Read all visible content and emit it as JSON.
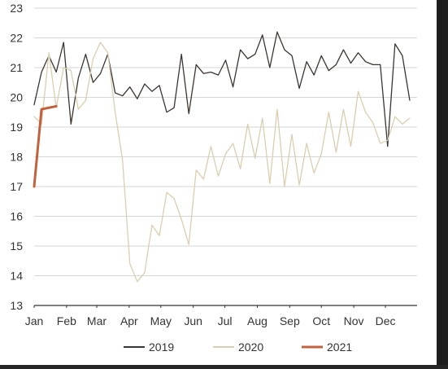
{
  "chart_data": {
    "type": "line",
    "title": "",
    "xlabel": "",
    "ylabel": "",
    "ylim": [
      13,
      23
    ],
    "yticks": [
      13,
      14,
      15,
      16,
      17,
      18,
      19,
      20,
      21,
      22,
      23
    ],
    "xlim": [
      0,
      52
    ],
    "month_ticks": [
      {
        "label": "Jan",
        "week": 0
      },
      {
        "label": "Feb",
        "week": 4.4
      },
      {
        "label": "Mar",
        "week": 8.5
      },
      {
        "label": "Apr",
        "week": 12.9
      },
      {
        "label": "May",
        "week": 17.2
      },
      {
        "label": "Jun",
        "week": 21.6
      },
      {
        "label": "Jul",
        "week": 25.9
      },
      {
        "label": "Aug",
        "week": 30.3
      },
      {
        "label": "Sep",
        "week": 34.7
      },
      {
        "label": "Oct",
        "week": 39.0
      },
      {
        "label": "Nov",
        "week": 43.4
      },
      {
        "label": "Dec",
        "week": 47.7
      }
    ],
    "grid": true,
    "legend_position": "bottom",
    "series": [
      {
        "name": "2019",
        "color": "#3a3532",
        "values": [
          19.75,
          20.85,
          21.4,
          20.85,
          21.85,
          19.1,
          20.65,
          21.45,
          20.5,
          20.8,
          21.45,
          20.15,
          20.05,
          20.35,
          19.95,
          20.45,
          20.2,
          20.4,
          19.5,
          19.65,
          21.45,
          19.45,
          21.1,
          20.8,
          20.85,
          20.75,
          21.25,
          20.35,
          21.6,
          21.3,
          21.45,
          22.1,
          21.0,
          22.2,
          21.6,
          21.4,
          20.3,
          21.2,
          20.75,
          21.4,
          20.9,
          21.1,
          21.6,
          21.15,
          21.5,
          21.2,
          21.1,
          21.1,
          18.35,
          21.8,
          21.4,
          19.9
        ]
      },
      {
        "name": "2020",
        "color": "#d9ceb0",
        "values": [
          19.35,
          19.1,
          21.5,
          19.65,
          21.0,
          20.9,
          19.6,
          19.9,
          21.3,
          21.85,
          21.5,
          19.5,
          17.9,
          14.4,
          13.8,
          14.1,
          15.7,
          15.35,
          16.8,
          16.6,
          15.9,
          15.05,
          17.55,
          17.25,
          18.35,
          17.35,
          18.1,
          18.45,
          17.6,
          19.1,
          17.95,
          19.3,
          17.1,
          19.6,
          17.0,
          18.75,
          17.05,
          18.45,
          17.45,
          18.1,
          19.5,
          18.15,
          19.6,
          18.35,
          20.2,
          19.5,
          19.15,
          18.45,
          18.55,
          19.35,
          19.1,
          19.3
        ]
      },
      {
        "name": "2021",
        "color": "#c2613e",
        "values": [
          17.0,
          19.6,
          19.65,
          19.7
        ]
      }
    ]
  }
}
